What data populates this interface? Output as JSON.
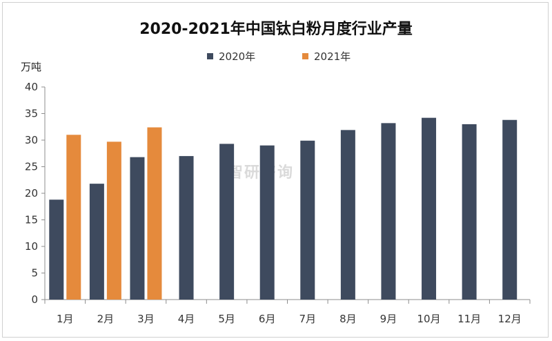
{
  "chart_data": {
    "type": "bar",
    "title": "2020-2021年中国钛白粉月度行业产量",
    "ylabel": "万吨",
    "xlabel": "",
    "ylim": [
      0,
      40
    ],
    "yticks": [
      0,
      5,
      10,
      15,
      20,
      25,
      30,
      35,
      40
    ],
    "categories": [
      "1月",
      "2月",
      "3月",
      "4月",
      "5月",
      "6月",
      "7月",
      "8月",
      "9月",
      "10月",
      "11月",
      "12月"
    ],
    "series": [
      {
        "name": "2020年",
        "color": "#3e4a5e",
        "values": [
          18.8,
          21.8,
          26.8,
          27.0,
          29.3,
          29.0,
          29.9,
          31.9,
          33.2,
          34.2,
          33.0,
          33.8
        ]
      },
      {
        "name": "2021年",
        "color": "#e58a3c",
        "values": [
          31.0,
          29.7,
          32.4,
          null,
          null,
          null,
          null,
          null,
          null,
          null,
          null,
          null
        ]
      }
    ],
    "legend_position": "top",
    "grid": false
  },
  "watermark_text": "智研咨询"
}
